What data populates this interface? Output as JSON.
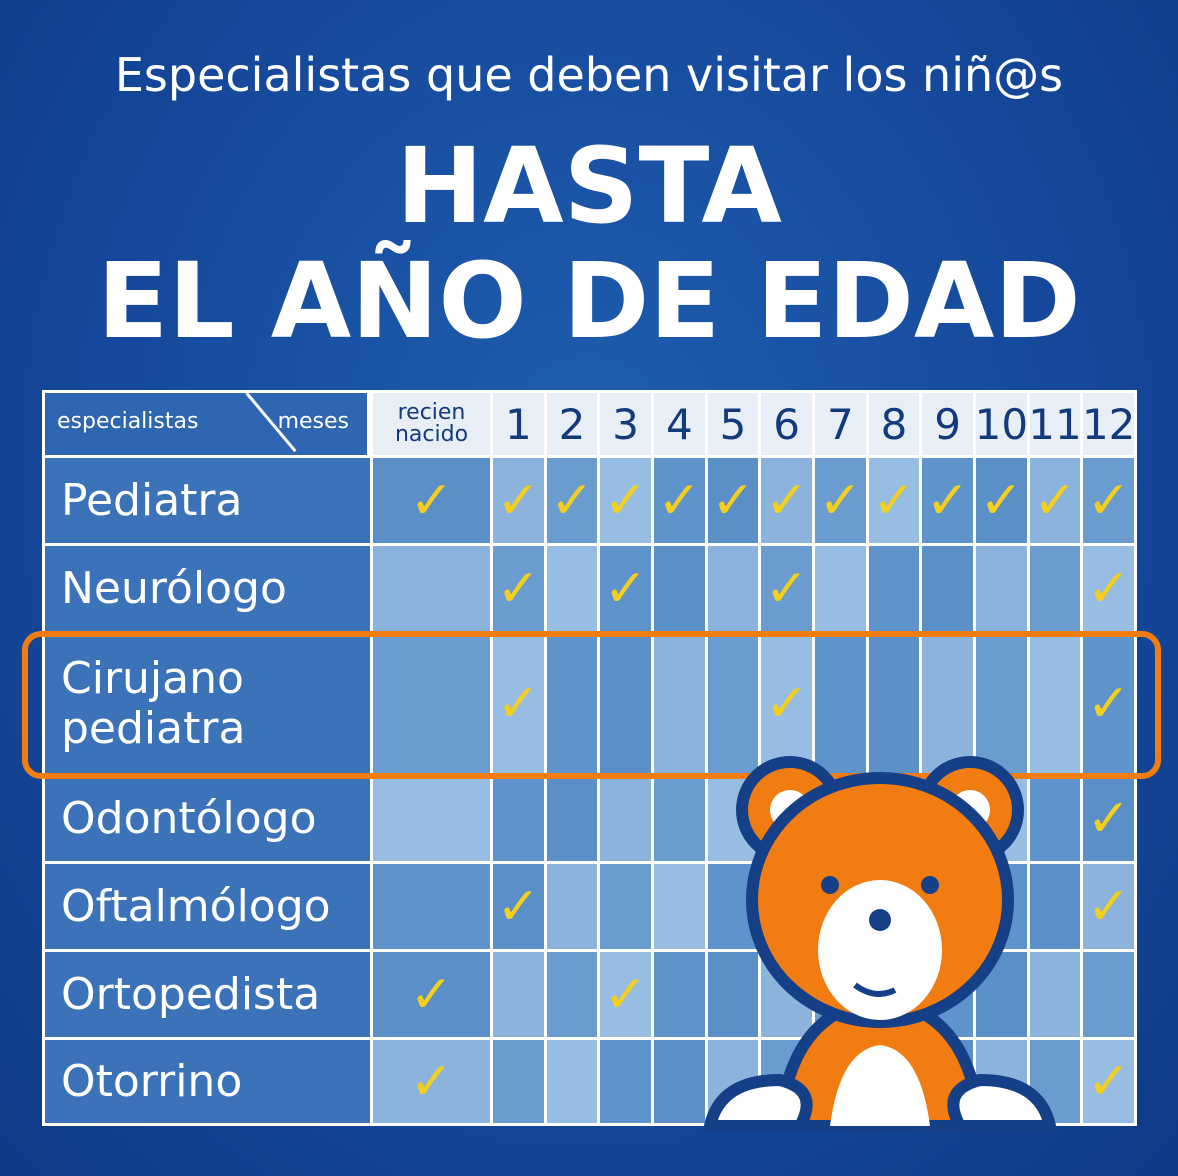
{
  "header": {
    "subtitle": "Especialistas que deben visitar los niñ@s",
    "title_line1": "HASTA",
    "title_line2": "EL AÑO DE EDAD"
  },
  "table": {
    "corner_left": "especialistas",
    "corner_right": "meses",
    "columns": [
      "recien nacido",
      "1",
      "2",
      "3",
      "4",
      "5",
      "6",
      "7",
      "8",
      "9",
      "10",
      "11",
      "12"
    ],
    "rows": [
      {
        "label": "Pediatra",
        "cells": [
          "✓",
          "✓",
          "✓",
          "✓",
          "✓",
          "✓",
          "✓",
          "✓",
          "✓",
          "✓",
          "✓",
          "✓",
          "✓"
        ]
      },
      {
        "label": "Neurólogo",
        "cells": [
          null,
          "✓",
          null,
          "✓",
          null,
          null,
          "✓",
          null,
          null,
          null,
          null,
          null,
          "✓"
        ]
      },
      {
        "label": "Cirujano\npediatra",
        "cells": [
          null,
          "✓",
          null,
          null,
          null,
          null,
          "✓",
          null,
          null,
          null,
          null,
          null,
          "✓"
        ]
      },
      {
        "label": "Odontólogo",
        "cells": [
          null,
          null,
          null,
          null,
          null,
          null,
          null,
          null,
          null,
          null,
          null,
          null,
          "✓"
        ]
      },
      {
        "label": "Oftalmólogo",
        "cells": [
          null,
          "✓",
          null,
          null,
          null,
          null,
          null,
          null,
          null,
          null,
          null,
          null,
          "✓"
        ]
      },
      {
        "label": "Ortopedista",
        "cells": [
          "✓",
          null,
          null,
          "✓",
          null,
          null,
          null,
          null,
          null,
          null,
          null,
          null,
          null
        ]
      },
      {
        "label": "Otorrino",
        "cells": [
          "✓",
          null,
          null,
          null,
          null,
          null,
          null,
          null,
          null,
          null,
          null,
          null,
          "✓"
        ]
      }
    ]
  }
}
